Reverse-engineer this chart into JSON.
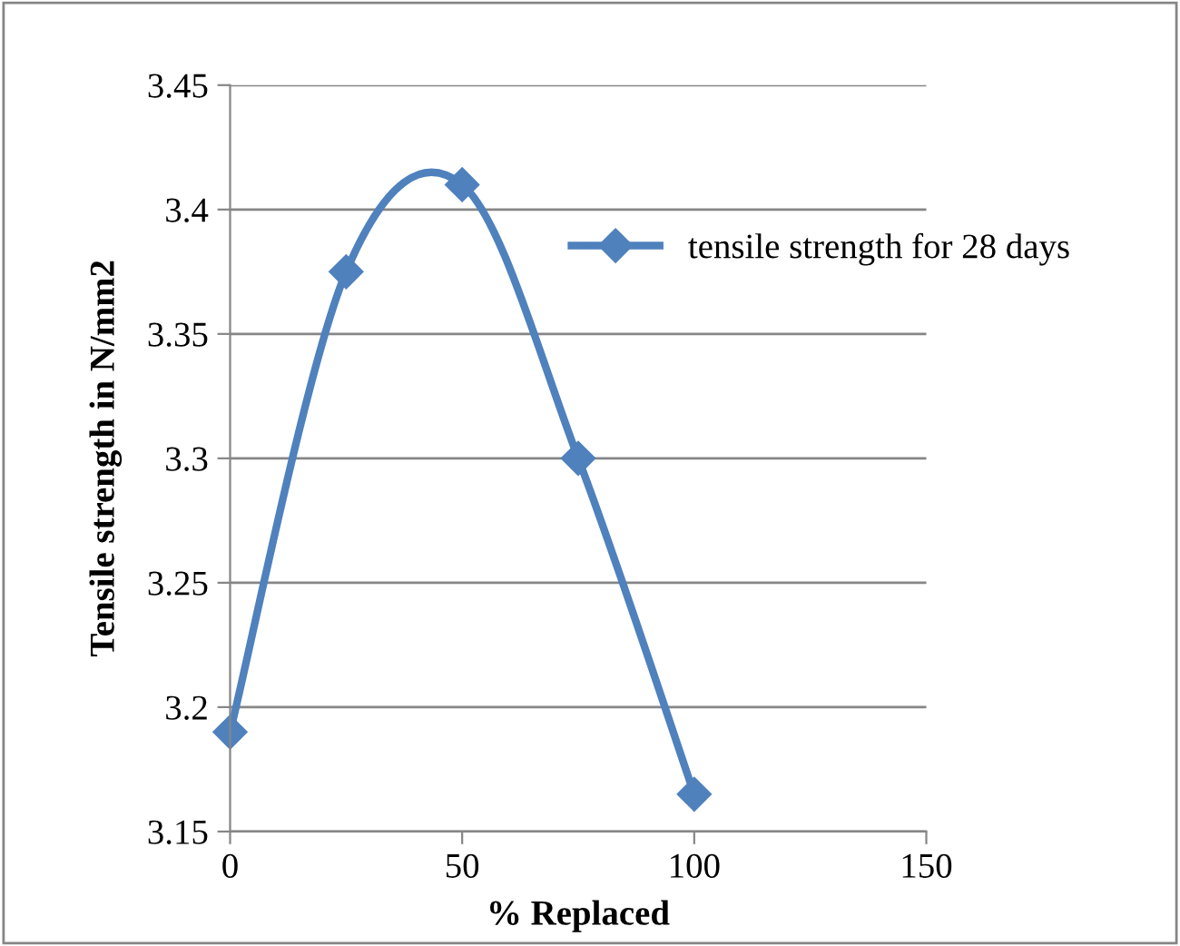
{
  "chart_data": {
    "type": "line",
    "xlabel": "% Replaced",
    "ylabel": "Tensile strength in N/mm2",
    "x": [
      0,
      25,
      50,
      75,
      100
    ],
    "series": [
      {
        "name": "tensile strength for 28 days",
        "color": "#4f81bd",
        "values": [
          3.19,
          3.375,
          3.41,
          3.3,
          3.165
        ]
      }
    ],
    "xlim": [
      0,
      150
    ],
    "xticks": [
      0,
      50,
      100,
      150
    ],
    "ylim": [
      3.15,
      3.45
    ],
    "yticks": [
      3.15,
      3.2,
      3.25,
      3.3,
      3.35,
      3.4,
      3.45
    ],
    "grid": "y",
    "legend": "right",
    "marker": "diamond",
    "line_style": "solid"
  }
}
